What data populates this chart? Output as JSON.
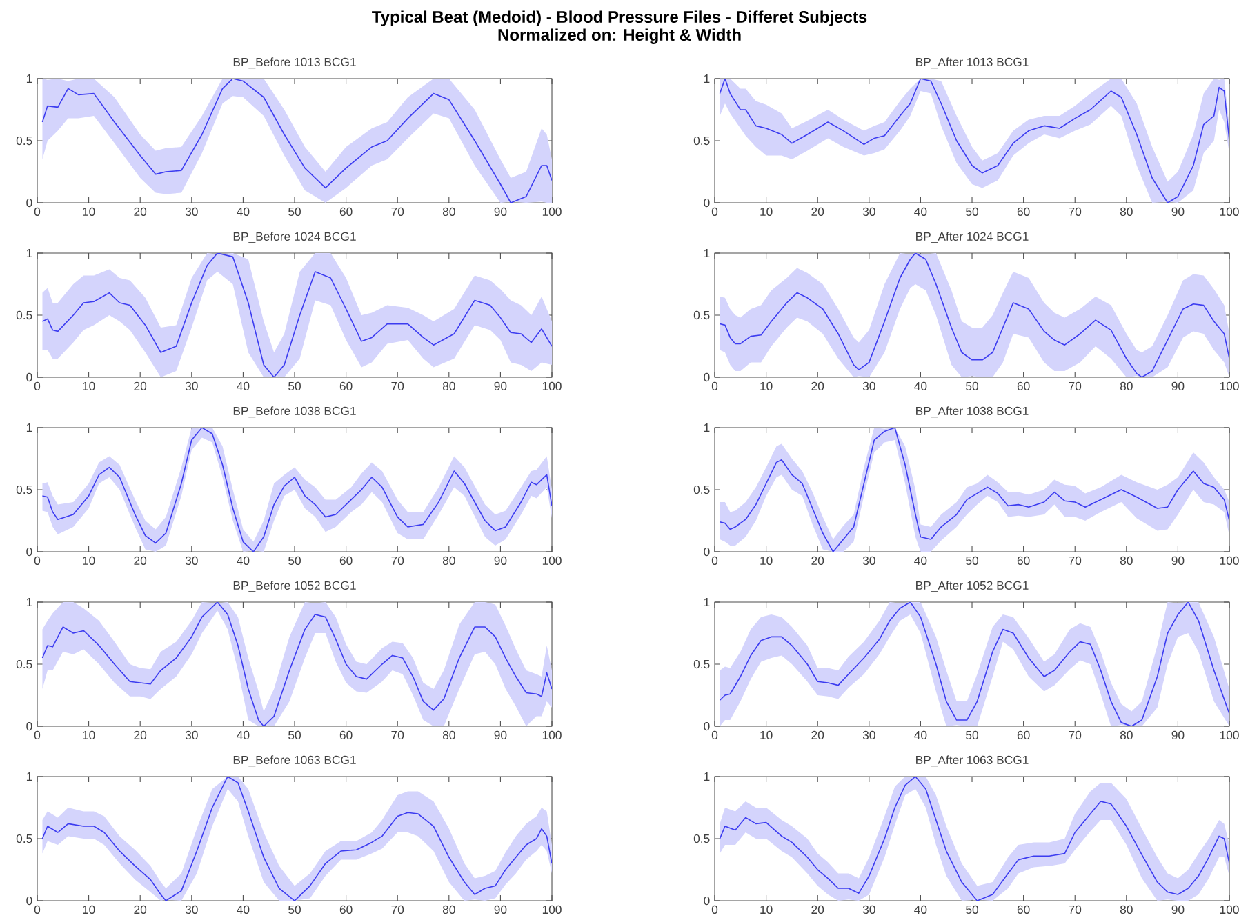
{
  "chart_data": [
    {
      "type": "other",
      "title": "Typical Beat (Medoid) - Blood Pressure Files - Differet Subjects",
      "subtitle": "Normalized on: Height & Width"
    },
    {
      "type": "line",
      "title": "BP_Before  1013  BCG1",
      "xlim": [
        0,
        100
      ],
      "ylim": [
        0,
        1
      ],
      "xticks": [
        0,
        10,
        20,
        30,
        40,
        50,
        60,
        70,
        80,
        90,
        100
      ],
      "yticks": [
        0,
        0.5,
        1
      ],
      "x": [
        1,
        2,
        4,
        6,
        8,
        11,
        15,
        20,
        23,
        25,
        28,
        32,
        36,
        38,
        40,
        44,
        48,
        52,
        56,
        60,
        65,
        68,
        72,
        77,
        80,
        85,
        90,
        92,
        95,
        98,
        99,
        100
      ],
      "series": [
        {
          "color": "#3c3cf0",
          "values": [
            0.65,
            0.78,
            0.77,
            0.92,
            0.87,
            0.88,
            0.65,
            0.38,
            0.23,
            0.25,
            0.26,
            0.55,
            0.92,
            1.0,
            0.98,
            0.85,
            0.55,
            0.28,
            0.12,
            0.28,
            0.45,
            0.5,
            0.68,
            0.88,
            0.83,
            0.5,
            0.15,
            0.0,
            0.05,
            0.3,
            0.3,
            0.18
          ],
          "upper": [
            1,
            0.99,
            1,
            0.98,
            1,
            1,
            0.85,
            0.55,
            0.42,
            0.44,
            0.45,
            0.7,
            1,
            0.99,
            1,
            1,
            0.75,
            0.45,
            0.25,
            0.45,
            0.6,
            0.65,
            0.85,
            1,
            1,
            0.75,
            0.35,
            0.2,
            0.25,
            0.6,
            0.55,
            0.35
          ],
          "lower": [
            0.35,
            0.5,
            0.58,
            0.68,
            0.68,
            0.7,
            0.48,
            0.2,
            0.08,
            0.07,
            0.08,
            0.4,
            0.8,
            0.86,
            0.85,
            0.7,
            0.38,
            0.1,
            0,
            0.12,
            0.3,
            0.35,
            0.52,
            0.72,
            0.68,
            0.3,
            0,
            0.01,
            0,
            0.01,
            0,
            0
          ]
        }
      ]
    },
    {
      "type": "line",
      "title": "BP_After  1013  BCG1",
      "xlim": [
        0,
        100
      ],
      "ylim": [
        0,
        1
      ],
      "xticks": [
        0,
        10,
        20,
        30,
        40,
        50,
        60,
        70,
        80,
        90,
        100
      ],
      "yticks": [
        0,
        0.5,
        1
      ],
      "x": [
        1,
        2,
        3,
        5,
        6,
        8,
        10,
        13,
        15,
        18,
        22,
        25,
        29,
        31,
        33,
        36,
        38,
        40,
        42,
        44,
        47,
        50,
        52,
        55,
        58,
        61,
        64,
        67,
        70,
        73,
        77,
        79,
        82,
        85,
        88,
        90,
        93,
        95,
        97,
        98,
        99,
        100
      ],
      "series": [
        {
          "color": "#3c3cf0",
          "values": [
            0.88,
            1.0,
            0.88,
            0.75,
            0.75,
            0.62,
            0.6,
            0.55,
            0.48,
            0.55,
            0.65,
            0.58,
            0.47,
            0.52,
            0.54,
            0.7,
            0.8,
            1.0,
            0.98,
            0.8,
            0.5,
            0.3,
            0.24,
            0.3,
            0.48,
            0.58,
            0.62,
            0.6,
            0.68,
            0.75,
            0.9,
            0.85,
            0.55,
            0.2,
            0.0,
            0.05,
            0.3,
            0.63,
            0.7,
            0.93,
            0.9,
            0.5
          ],
          "upper": [
            1,
            0.99,
            1,
            0.92,
            0.92,
            0.82,
            0.79,
            0.72,
            0.6,
            0.66,
            0.75,
            0.67,
            0.58,
            0.62,
            0.65,
            0.82,
            0.92,
            1,
            1,
            0.98,
            0.7,
            0.45,
            0.34,
            0.4,
            0.58,
            0.67,
            0.7,
            0.7,
            0.78,
            0.88,
            1,
            1,
            0.8,
            0.45,
            0.17,
            0.25,
            0.55,
            0.88,
            1,
            0.99,
            1,
            0.62
          ],
          "lower": [
            0.7,
            0.8,
            0.72,
            0.6,
            0.54,
            0.45,
            0.38,
            0.38,
            0.35,
            0.42,
            0.52,
            0.45,
            0.38,
            0.4,
            0.43,
            0.58,
            0.7,
            0.9,
            0.88,
            0.62,
            0.32,
            0.15,
            0.12,
            0.18,
            0.38,
            0.48,
            0.55,
            0.52,
            0.58,
            0.63,
            0.78,
            0.7,
            0.3,
            0,
            0.01,
            0,
            0.1,
            0.4,
            0.5,
            0.75,
            0.65,
            0.4
          ]
        }
      ]
    },
    {
      "type": "line",
      "title": "BP_Before  1024  BCG1",
      "xlim": [
        0,
        100
      ],
      "ylim": [
        0,
        1
      ],
      "xticks": [
        0,
        10,
        20,
        30,
        40,
        50,
        60,
        70,
        80,
        90,
        100
      ],
      "yticks": [
        0,
        0.5,
        1
      ],
      "x": [
        1,
        2,
        3,
        4,
        7,
        9,
        11,
        14,
        16,
        18,
        21,
        24,
        27,
        30,
        33,
        35,
        38,
        41,
        44,
        46,
        48,
        51,
        54,
        57,
        60,
        63,
        65,
        68,
        72,
        75,
        77,
        81,
        85,
        88,
        90,
        92,
        94,
        96,
        98,
        100
      ],
      "series": [
        {
          "color": "#3c3cf0",
          "values": [
            0.45,
            0.47,
            0.38,
            0.37,
            0.5,
            0.6,
            0.61,
            0.68,
            0.6,
            0.58,
            0.42,
            0.2,
            0.25,
            0.6,
            0.9,
            1.0,
            0.97,
            0.6,
            0.1,
            0.0,
            0.1,
            0.5,
            0.85,
            0.8,
            0.55,
            0.29,
            0.32,
            0.43,
            0.43,
            0.32,
            0.26,
            0.35,
            0.62,
            0.58,
            0.48,
            0.36,
            0.35,
            0.28,
            0.39,
            0.25
          ],
          "upper": [
            0.68,
            0.72,
            0.6,
            0.6,
            0.75,
            0.82,
            0.82,
            0.87,
            0.8,
            0.78,
            0.64,
            0.4,
            0.42,
            0.8,
            1,
            0.99,
            1,
            0.95,
            0.45,
            0.2,
            0.35,
            0.85,
            1,
            1,
            0.8,
            0.5,
            0.52,
            0.58,
            0.56,
            0.5,
            0.45,
            0.55,
            0.82,
            0.78,
            0.71,
            0.62,
            0.58,
            0.5,
            0.65,
            0.45
          ],
          "lower": [
            0.22,
            0.22,
            0.15,
            0.15,
            0.28,
            0.38,
            0.42,
            0.5,
            0.45,
            0.38,
            0.2,
            0,
            0.05,
            0.4,
            0.78,
            0.85,
            0.75,
            0.2,
            0,
            0.01,
            0,
            0.15,
            0.62,
            0.58,
            0.3,
            0.08,
            0.12,
            0.27,
            0.3,
            0.15,
            0.08,
            0.15,
            0.42,
            0.38,
            0.3,
            0.12,
            0.1,
            0.05,
            0.12,
            0.1
          ]
        }
      ]
    },
    {
      "type": "line",
      "title": "BP_After  1024  BCG1",
      "xlim": [
        0,
        100
      ],
      "ylim": [
        0,
        1
      ],
      "xticks": [
        0,
        10,
        20,
        30,
        40,
        50,
        60,
        70,
        80,
        90,
        100
      ],
      "yticks": [
        0,
        0.5,
        1
      ],
      "x": [
        1,
        2,
        3,
        4,
        5,
        7,
        9,
        11,
        14,
        16,
        18,
        21,
        24,
        27,
        28,
        30,
        33,
        36,
        38,
        39,
        41,
        43,
        46,
        48,
        50,
        52,
        54,
        56,
        58,
        61,
        64,
        66,
        68,
        71,
        74,
        77,
        80,
        82,
        83,
        85,
        88,
        91,
        93,
        95,
        97,
        99,
        100
      ],
      "series": [
        {
          "color": "#3c3cf0",
          "values": [
            0.43,
            0.42,
            0.32,
            0.27,
            0.27,
            0.33,
            0.34,
            0.45,
            0.6,
            0.68,
            0.64,
            0.55,
            0.35,
            0.1,
            0.06,
            0.12,
            0.45,
            0.8,
            0.95,
            1.0,
            0.95,
            0.75,
            0.4,
            0.2,
            0.14,
            0.14,
            0.2,
            0.4,
            0.6,
            0.55,
            0.37,
            0.3,
            0.26,
            0.35,
            0.46,
            0.38,
            0.15,
            0.03,
            0.0,
            0.05,
            0.3,
            0.55,
            0.59,
            0.58,
            0.45,
            0.35,
            0.15
          ],
          "upper": [
            0.65,
            0.64,
            0.55,
            0.5,
            0.48,
            0.55,
            0.58,
            0.7,
            0.8,
            0.88,
            0.84,
            0.75,
            0.55,
            0.32,
            0.28,
            0.38,
            0.75,
            1,
            0.99,
            1,
            0.99,
            1,
            0.7,
            0.45,
            0.4,
            0.4,
            0.5,
            0.68,
            0.85,
            0.8,
            0.6,
            0.52,
            0.48,
            0.55,
            0.65,
            0.58,
            0.35,
            0.22,
            0.2,
            0.25,
            0.5,
            0.78,
            0.83,
            0.82,
            0.71,
            0.58,
            0.35
          ],
          "lower": [
            0.22,
            0.2,
            0.1,
            0.05,
            0.05,
            0.12,
            0.12,
            0.25,
            0.4,
            0.48,
            0.45,
            0.35,
            0.15,
            0,
            0.01,
            0,
            0.2,
            0.55,
            0.72,
            0.75,
            0.7,
            0.5,
            0.1,
            0,
            0.01,
            0,
            0,
            0.12,
            0.35,
            0.32,
            0.12,
            0.05,
            0.05,
            0.12,
            0.25,
            0.15,
            0,
            0.01,
            0,
            0,
            0.08,
            0.32,
            0.37,
            0.35,
            0.22,
            0.12,
            0
          ]
        }
      ]
    },
    {
      "type": "line",
      "title": "BP_Before  1038  BCG1",
      "xlim": [
        0,
        100
      ],
      "ylim": [
        0,
        1
      ],
      "xticks": [
        0,
        10,
        20,
        30,
        40,
        50,
        60,
        70,
        80,
        90,
        100
      ],
      "yticks": [
        0,
        0.5,
        1
      ],
      "x": [
        1,
        2,
        3,
        4,
        7,
        10,
        12,
        14,
        16,
        19,
        21,
        23,
        25,
        28,
        30,
        32,
        34,
        36,
        38,
        40,
        42,
        44,
        46,
        48,
        50,
        52,
        54,
        56,
        58,
        61,
        63,
        65,
        67,
        70,
        72,
        75,
        78,
        81,
        83,
        87,
        89,
        91,
        94,
        96,
        97,
        99,
        100
      ],
      "series": [
        {
          "color": "#3c3cf0",
          "values": [
            0.45,
            0.44,
            0.32,
            0.26,
            0.3,
            0.45,
            0.62,
            0.68,
            0.6,
            0.3,
            0.13,
            0.07,
            0.15,
            0.55,
            0.9,
            1.0,
            0.95,
            0.7,
            0.35,
            0.08,
            0.0,
            0.12,
            0.38,
            0.53,
            0.6,
            0.45,
            0.38,
            0.28,
            0.3,
            0.42,
            0.5,
            0.6,
            0.52,
            0.28,
            0.2,
            0.22,
            0.4,
            0.65,
            0.55,
            0.25,
            0.17,
            0.2,
            0.4,
            0.56,
            0.54,
            0.62,
            0.37
          ],
          "upper": [
            0.55,
            0.56,
            0.45,
            0.38,
            0.4,
            0.55,
            0.72,
            0.77,
            0.7,
            0.42,
            0.25,
            0.18,
            0.28,
            0.68,
            1,
            0.99,
            1,
            0.85,
            0.5,
            0.18,
            0.08,
            0.25,
            0.55,
            0.62,
            0.68,
            0.58,
            0.52,
            0.42,
            0.42,
            0.52,
            0.63,
            0.72,
            0.65,
            0.42,
            0.32,
            0.32,
            0.52,
            0.77,
            0.68,
            0.38,
            0.3,
            0.33,
            0.52,
            0.65,
            0.66,
            0.77,
            0.5
          ],
          "lower": [
            0.33,
            0.32,
            0.2,
            0.14,
            0.2,
            0.35,
            0.55,
            0.6,
            0.5,
            0.2,
            0.02,
            0,
            0.05,
            0.45,
            0.82,
            0.92,
            0.88,
            0.6,
            0.25,
            0,
            0.01,
            0,
            0.25,
            0.45,
            0.5,
            0.35,
            0.28,
            0.16,
            0.2,
            0.32,
            0.38,
            0.48,
            0.4,
            0.15,
            0.1,
            0.1,
            0.3,
            0.52,
            0.45,
            0.12,
            0.05,
            0.1,
            0.3,
            0.45,
            0.43,
            0.52,
            0.27
          ]
        }
      ]
    },
    {
      "type": "line",
      "title": "BP_After  1038  BCG1",
      "xlim": [
        0,
        100
      ],
      "ylim": [
        0,
        1
      ],
      "xticks": [
        0,
        10,
        20,
        30,
        40,
        50,
        60,
        70,
        80,
        90,
        100
      ],
      "yticks": [
        0,
        0.5,
        1
      ],
      "x": [
        1,
        2,
        3,
        4,
        6,
        8,
        10,
        12,
        13,
        15,
        17,
        19,
        21,
        23,
        25,
        27,
        29,
        31,
        33,
        35,
        37,
        39,
        40,
        42,
        44,
        47,
        49,
        51,
        53,
        55,
        57,
        59,
        61,
        64,
        66,
        68,
        70,
        72,
        75,
        79,
        82,
        86,
        88,
        90,
        93,
        95,
        97,
        99,
        100
      ],
      "series": [
        {
          "color": "#3c3cf0",
          "values": [
            0.24,
            0.23,
            0.18,
            0.2,
            0.26,
            0.38,
            0.55,
            0.72,
            0.74,
            0.62,
            0.55,
            0.35,
            0.15,
            0.0,
            0.1,
            0.2,
            0.55,
            0.9,
            0.97,
            1.0,
            0.7,
            0.3,
            0.12,
            0.1,
            0.2,
            0.3,
            0.42,
            0.47,
            0.52,
            0.47,
            0.37,
            0.38,
            0.36,
            0.4,
            0.48,
            0.41,
            0.4,
            0.36,
            0.42,
            0.5,
            0.44,
            0.35,
            0.36,
            0.5,
            0.65,
            0.55,
            0.52,
            0.42,
            0.25
          ],
          "upper": [
            0.4,
            0.4,
            0.32,
            0.33,
            0.4,
            0.52,
            0.68,
            0.85,
            0.87,
            0.75,
            0.65,
            0.48,
            0.28,
            0.1,
            0.21,
            0.3,
            0.68,
            1,
            0.99,
            1,
            0.85,
            0.5,
            0.22,
            0.2,
            0.3,
            0.4,
            0.52,
            0.55,
            0.62,
            0.56,
            0.48,
            0.48,
            0.46,
            0.5,
            0.58,
            0.54,
            0.53,
            0.47,
            0.52,
            0.62,
            0.56,
            0.5,
            0.54,
            0.6,
            0.8,
            0.72,
            0.6,
            0.5,
            0.4
          ],
          "lower": [
            0.1,
            0.08,
            0.05,
            0.05,
            0.12,
            0.25,
            0.45,
            0.6,
            0.62,
            0.5,
            0.45,
            0.22,
            0.02,
            0,
            0,
            0.08,
            0.45,
            0.8,
            0.88,
            0.9,
            0.55,
            0.12,
            0,
            0,
            0.09,
            0.2,
            0.3,
            0.38,
            0.45,
            0.4,
            0.28,
            0.29,
            0.28,
            0.3,
            0.38,
            0.28,
            0.28,
            0.25,
            0.32,
            0.4,
            0.27,
            0.17,
            0.18,
            0.3,
            0.5,
            0.4,
            0.38,
            0.32,
            0.13
          ]
        }
      ]
    },
    {
      "type": "line",
      "title": "BP_Before  1052  BCG1",
      "xlim": [
        0,
        100
      ],
      "ylim": [
        0,
        1
      ],
      "xticks": [
        0,
        10,
        20,
        30,
        40,
        50,
        60,
        70,
        80,
        90,
        100
      ],
      "yticks": [
        0,
        0.5,
        1
      ],
      "x": [
        1,
        2,
        3,
        5,
        7,
        9,
        12,
        15,
        18,
        20,
        22,
        24,
        27,
        30,
        32,
        35,
        37,
        39,
        41,
        43,
        44,
        46,
        49,
        52,
        54,
        56,
        58,
        60,
        62,
        64,
        67,
        69,
        71,
        73,
        75,
        77,
        79,
        82,
        85,
        87,
        89,
        91,
        93,
        95,
        97,
        98,
        99,
        100
      ],
      "series": [
        {
          "color": "#3c3cf0",
          "values": [
            0.55,
            0.65,
            0.64,
            0.8,
            0.75,
            0.77,
            0.65,
            0.5,
            0.36,
            0.35,
            0.34,
            0.45,
            0.55,
            0.72,
            0.88,
            1.0,
            0.9,
            0.65,
            0.3,
            0.05,
            0.0,
            0.08,
            0.45,
            0.78,
            0.9,
            0.88,
            0.7,
            0.5,
            0.4,
            0.38,
            0.5,
            0.57,
            0.55,
            0.4,
            0.2,
            0.13,
            0.22,
            0.55,
            0.8,
            0.8,
            0.72,
            0.55,
            0.4,
            0.27,
            0.26,
            0.24,
            0.43,
            0.3
          ],
          "upper": [
            0.78,
            0.85,
            0.91,
            1,
            1,
            0.95,
            0.85,
            0.68,
            0.5,
            0.47,
            0.46,
            0.6,
            0.68,
            0.85,
            1,
            0.99,
            1,
            0.88,
            0.55,
            0.28,
            0.12,
            0.3,
            0.72,
            1,
            0.99,
            1,
            0.88,
            0.66,
            0.52,
            0.5,
            0.63,
            0.68,
            0.67,
            0.55,
            0.35,
            0.3,
            0.45,
            0.82,
            1,
            1,
            0.98,
            0.81,
            0.62,
            0.45,
            0.42,
            0.4,
            0.65,
            0.45
          ],
          "lower": [
            0.3,
            0.45,
            0.45,
            0.6,
            0.58,
            0.62,
            0.5,
            0.35,
            0.24,
            0.24,
            0.22,
            0.3,
            0.4,
            0.58,
            0.75,
            0.93,
            0.78,
            0.45,
            0.05,
            0,
            0.01,
            0,
            0.2,
            0.55,
            0.75,
            0.75,
            0.52,
            0.35,
            0.28,
            0.27,
            0.36,
            0.45,
            0.42,
            0.25,
            0.05,
            0,
            0,
            0.3,
            0.58,
            0.6,
            0.5,
            0.3,
            0.16,
            0,
            0.08,
            0.08,
            0.2,
            0.15
          ]
        }
      ]
    },
    {
      "type": "line",
      "title": "BP_After  1052  BCG1",
      "xlim": [
        0,
        100
      ],
      "ylim": [
        0,
        1
      ],
      "xticks": [
        0,
        10,
        20,
        30,
        40,
        50,
        60,
        70,
        80,
        90,
        100
      ],
      "yticks": [
        0,
        0.5,
        1
      ],
      "x": [
        1,
        2,
        3,
        5,
        7,
        9,
        11,
        13,
        15,
        18,
        20,
        22,
        24,
        26,
        29,
        32,
        34,
        36,
        38,
        40,
        43,
        45,
        47,
        49,
        51,
        54,
        56,
        58,
        61,
        64,
        66,
        69,
        71,
        73,
        75,
        77,
        79,
        81,
        83,
        86,
        88,
        90,
        92,
        94,
        97,
        100
      ],
      "series": [
        {
          "color": "#3c3cf0",
          "values": [
            0.21,
            0.25,
            0.26,
            0.4,
            0.57,
            0.69,
            0.72,
            0.72,
            0.65,
            0.5,
            0.36,
            0.35,
            0.33,
            0.42,
            0.55,
            0.7,
            0.85,
            0.95,
            1.0,
            0.88,
            0.5,
            0.2,
            0.05,
            0.05,
            0.2,
            0.6,
            0.78,
            0.75,
            0.55,
            0.4,
            0.45,
            0.6,
            0.68,
            0.66,
            0.45,
            0.2,
            0.03,
            0.0,
            0.05,
            0.4,
            0.75,
            0.9,
            1.0,
            0.85,
            0.45,
            0.1
          ],
          "upper": [
            0.45,
            0.48,
            0.47,
            0.6,
            0.78,
            0.88,
            0.9,
            0.88,
            0.8,
            0.65,
            0.47,
            0.47,
            0.45,
            0.56,
            0.68,
            0.85,
            1,
            0.99,
            1,
            1,
            0.72,
            0.45,
            0.2,
            0.2,
            0.42,
            0.8,
            0.9,
            0.88,
            0.71,
            0.52,
            0.58,
            0.78,
            0.83,
            0.8,
            0.6,
            0.35,
            0.18,
            0.12,
            0.2,
            0.65,
            1,
            0.99,
            1,
            1,
            0.72,
            0.3
          ],
          "lower": [
            0,
            0.05,
            0.05,
            0.2,
            0.38,
            0.52,
            0.55,
            0.57,
            0.5,
            0.36,
            0.25,
            0.24,
            0.22,
            0.31,
            0.42,
            0.58,
            0.72,
            0.85,
            0.9,
            0.75,
            0.28,
            0,
            0.01,
            0,
            0,
            0.4,
            0.68,
            0.62,
            0.4,
            0.28,
            0.33,
            0.46,
            0.53,
            0.5,
            0.26,
            0,
            0.01,
            0,
            0,
            0.15,
            0.5,
            0.72,
            0.75,
            0.6,
            0.2,
            0
          ]
        }
      ]
    },
    {
      "type": "line",
      "title": "BP_Before  1063  BCG1",
      "xlim": [
        0,
        100
      ],
      "ylim": [
        0,
        1
      ],
      "xticks": [
        0,
        10,
        20,
        30,
        40,
        50,
        60,
        70,
        80,
        90,
        100
      ],
      "yticks": [
        0,
        0.5,
        1
      ],
      "x": [
        1,
        2,
        4,
        6,
        9,
        11,
        13,
        16,
        19,
        22,
        24,
        25,
        28,
        31,
        34,
        37,
        39,
        41,
        44,
        47,
        50,
        53,
        56,
        59,
        62,
        65,
        67,
        70,
        72,
        74,
        77,
        80,
        83,
        85,
        87,
        89,
        91,
        93,
        95,
        97,
        98,
        99,
        100
      ],
      "series": [
        {
          "color": "#3c3cf0",
          "values": [
            0.5,
            0.6,
            0.55,
            0.62,
            0.6,
            0.6,
            0.55,
            0.4,
            0.28,
            0.17,
            0.05,
            0.0,
            0.08,
            0.4,
            0.75,
            1.0,
            0.95,
            0.72,
            0.35,
            0.1,
            0.0,
            0.12,
            0.3,
            0.4,
            0.41,
            0.47,
            0.52,
            0.68,
            0.71,
            0.7,
            0.6,
            0.35,
            0.15,
            0.05,
            0.1,
            0.12,
            0.25,
            0.35,
            0.45,
            0.5,
            0.58,
            0.52,
            0.3
          ],
          "upper": [
            0.65,
            0.72,
            0.67,
            0.75,
            0.72,
            0.72,
            0.68,
            0.52,
            0.41,
            0.28,
            0.15,
            0.1,
            0.22,
            0.58,
            0.9,
            1,
            1,
            0.9,
            0.55,
            0.28,
            0.12,
            0.22,
            0.4,
            0.48,
            0.48,
            0.55,
            0.65,
            0.85,
            0.88,
            0.88,
            0.8,
            0.58,
            0.3,
            0.18,
            0.2,
            0.24,
            0.39,
            0.52,
            0.62,
            0.68,
            0.75,
            0.72,
            0.45
          ],
          "lower": [
            0.38,
            0.48,
            0.45,
            0.52,
            0.5,
            0.5,
            0.45,
            0.3,
            0.17,
            0.07,
            0,
            0.01,
            0,
            0.22,
            0.6,
            0.9,
            0.8,
            0.52,
            0.15,
            0,
            0,
            0.02,
            0.2,
            0.33,
            0.33,
            0.38,
            0.42,
            0.55,
            0.55,
            0.52,
            0.4,
            0.15,
            0,
            0.01,
            0,
            0.02,
            0.13,
            0.22,
            0.33,
            0.4,
            0.45,
            0.4,
            0.22
          ]
        }
      ]
    },
    {
      "type": "line",
      "title": "BP_After  1063  BCG1",
      "xlim": [
        0,
        100
      ],
      "ylim": [
        0,
        1
      ],
      "xticks": [
        0,
        10,
        20,
        30,
        40,
        50,
        60,
        70,
        80,
        90,
        100
      ],
      "yticks": [
        0,
        0.5,
        1
      ],
      "x": [
        1,
        2,
        4,
        6,
        8,
        10,
        13,
        15,
        18,
        20,
        22,
        24,
        26,
        28,
        30,
        33,
        35,
        37,
        39,
        41,
        43,
        45,
        48,
        51,
        54,
        57,
        59,
        62,
        65,
        68,
        70,
        73,
        75,
        77,
        80,
        83,
        86,
        88,
        90,
        92,
        94,
        96,
        98,
        99,
        100
      ],
      "series": [
        {
          "color": "#3c3cf0",
          "values": [
            0.5,
            0.6,
            0.57,
            0.67,
            0.62,
            0.63,
            0.52,
            0.47,
            0.35,
            0.25,
            0.18,
            0.1,
            0.1,
            0.06,
            0.2,
            0.5,
            0.75,
            0.93,
            1.0,
            0.9,
            0.65,
            0.4,
            0.15,
            0.0,
            0.05,
            0.22,
            0.33,
            0.36,
            0.36,
            0.38,
            0.55,
            0.7,
            0.8,
            0.78,
            0.6,
            0.37,
            0.15,
            0.07,
            0.05,
            0.1,
            0.2,
            0.35,
            0.52,
            0.5,
            0.3
          ],
          "upper": [
            0.62,
            0.75,
            0.72,
            0.8,
            0.75,
            0.75,
            0.65,
            0.6,
            0.5,
            0.38,
            0.31,
            0.22,
            0.22,
            0.18,
            0.35,
            0.68,
            0.92,
            1,
            0.99,
            1,
            0.85,
            0.6,
            0.3,
            0.12,
            0.15,
            0.35,
            0.45,
            0.47,
            0.47,
            0.5,
            0.7,
            0.88,
            0.95,
            0.95,
            0.82,
            0.58,
            0.35,
            0.22,
            0.18,
            0.25,
            0.38,
            0.5,
            0.65,
            0.62,
            0.45
          ],
          "lower": [
            0.38,
            0.45,
            0.45,
            0.55,
            0.5,
            0.5,
            0.4,
            0.35,
            0.22,
            0.12,
            0.05,
            0,
            0.01,
            0,
            0.05,
            0.35,
            0.61,
            0.85,
            0.9,
            0.75,
            0.45,
            0.2,
            0,
            0.01,
            0,
            0.1,
            0.22,
            0.27,
            0.28,
            0.3,
            0.41,
            0.56,
            0.65,
            0.65,
            0.45,
            0.18,
            0,
            0.01,
            0,
            0,
            0.05,
            0.18,
            0.35,
            0.35,
            0.2
          ]
        }
      ]
    }
  ]
}
